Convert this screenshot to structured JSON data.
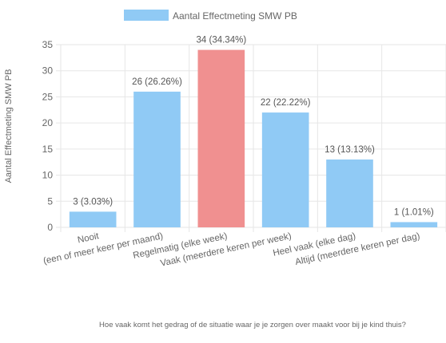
{
  "chart_data": {
    "type": "bar",
    "categories": [
      "Nooit",
      "(een of meer keer per maand)",
      "Regelmatig (elke week)",
      "Vaak (meerdere keren per week)",
      "Heel vaak (elke dag)",
      "Altijd (meerdere keren per dag)"
    ],
    "series": [
      {
        "name": "Aantal Effectmeting SMW PB",
        "values": [
          3,
          26,
          34,
          22,
          13,
          1
        ],
        "data_labels": [
          "3 (3.03%)",
          "26 (26.26%)",
          "34 (34.34%)",
          "22 (22.22%)",
          "13 (13.13%)",
          "1 (1.01%)"
        ]
      }
    ],
    "highlight_index": 2,
    "colors": {
      "bar": "#90CAF5",
      "highlight": "#F09090",
      "grid": "#e6e6e6",
      "text": "#666666"
    },
    "ylim": [
      0,
      35
    ],
    "yticks": [
      "0",
      "5",
      "10",
      "15",
      "20",
      "25",
      "30",
      "35"
    ],
    "ylabel": "Aantal Effectmeting SMW PB",
    "xlabel": "Hoe vaak komt het gedrag of de situatie waar je je zorgen over maakt voor bij je kind thuis?",
    "legend_position": "top",
    "grid": true
  }
}
